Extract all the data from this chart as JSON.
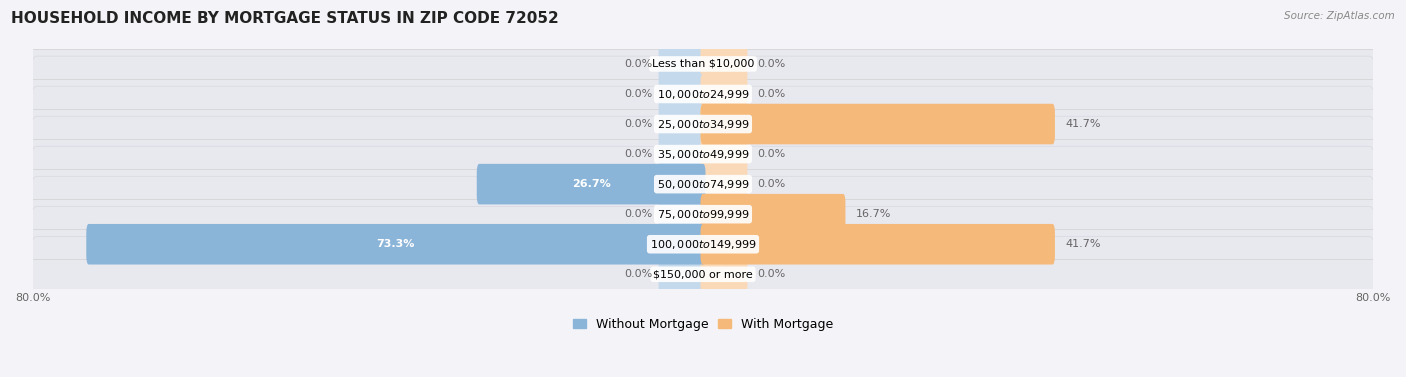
{
  "title": "HOUSEHOLD INCOME BY MORTGAGE STATUS IN ZIP CODE 72052",
  "source": "Source: ZipAtlas.com",
  "categories": [
    "Less than $10,000",
    "$10,000 to $24,999",
    "$25,000 to $34,999",
    "$35,000 to $49,999",
    "$50,000 to $74,999",
    "$75,000 to $99,999",
    "$100,000 to $149,999",
    "$150,000 or more"
  ],
  "without_mortgage": [
    0.0,
    0.0,
    0.0,
    0.0,
    26.7,
    0.0,
    73.3,
    0.0
  ],
  "with_mortgage": [
    0.0,
    0.0,
    41.7,
    0.0,
    0.0,
    16.7,
    41.7,
    0.0
  ],
  "max_val": 80.0,
  "color_without": "#8ab4d8",
  "color_with": "#f5b97a",
  "color_without_light": "#c5d9ec",
  "color_with_light": "#fad9b8",
  "row_bg": "#ebebf0",
  "fig_bg": "#f4f4f8",
  "label_color": "#666666",
  "white_label_color": "#ffffff",
  "title_fontsize": 11,
  "label_fontsize": 8,
  "legend_fontsize": 9,
  "axis_label_fontsize": 8
}
